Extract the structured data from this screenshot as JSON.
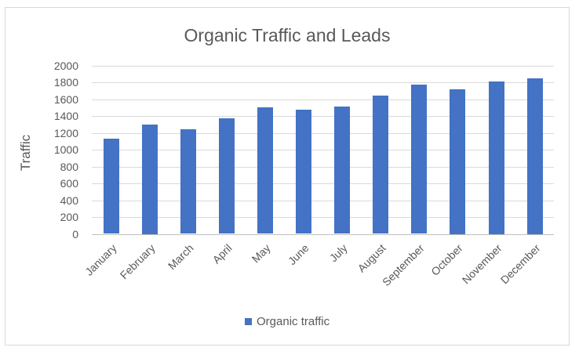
{
  "chart_data": {
    "type": "bar",
    "title": "Organic Traffic and Leads",
    "xlabel": "",
    "ylabel": "Traffic",
    "ylim": [
      0,
      2000
    ],
    "yticks": [
      0,
      200,
      400,
      600,
      800,
      1000,
      1200,
      1400,
      1600,
      1800,
      2000
    ],
    "grid": true,
    "legend_position": "bottom",
    "categories": [
      "January",
      "February",
      "March",
      "April",
      "May",
      "June",
      "July",
      "August",
      "September",
      "October",
      "November",
      "December"
    ],
    "series": [
      {
        "name": "Organic traffic",
        "color": "#4472C4",
        "values": [
          1130,
          1300,
          1240,
          1370,
          1500,
          1470,
          1510,
          1640,
          1770,
          1720,
          1810,
          1850
        ]
      }
    ]
  },
  "colors": {
    "bar": "#4472C4",
    "text": "#595959",
    "grid": "#d9d9d9"
  }
}
